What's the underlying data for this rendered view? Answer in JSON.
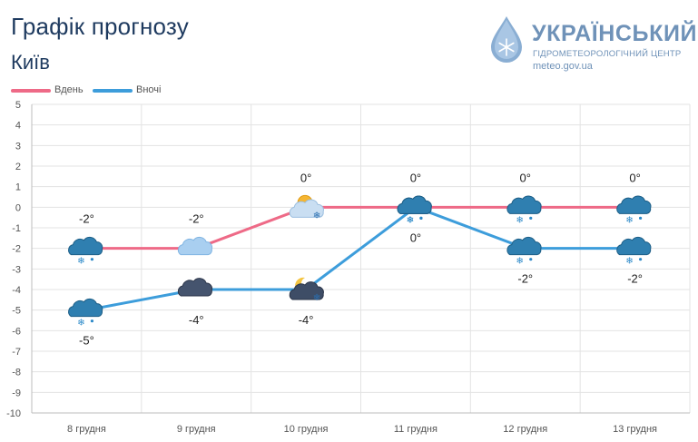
{
  "header": {
    "title": "Графік прогнозу",
    "city": "Київ"
  },
  "brand": {
    "name": "УКРАЇНСЬКИЙ",
    "subtitle": "ГІДРОМЕТЕОРОЛОГІЧНИЙ ЦЕНТР",
    "site": "meteo.gov.ua"
  },
  "colors": {
    "day": "#ee6a87",
    "night": "#3d9ddb",
    "grid": "#e3e3e3",
    "axis_text": "#555555",
    "label_text": "#222222"
  },
  "chart_data": {
    "type": "line",
    "x": [
      "8 грудня",
      "9 грудня",
      "10 грудня",
      "11 грудня",
      "12 грудня",
      "13 грудня"
    ],
    "ylim": [
      -10,
      5
    ],
    "yticks": [
      5,
      4,
      3,
      2,
      1,
      0,
      -1,
      -2,
      -3,
      -4,
      -5,
      -6,
      -7,
      -8,
      -9,
      -10
    ],
    "grid": true,
    "legend_position": "top-left",
    "series": [
      {
        "name": "Вдень",
        "values": [
          -2,
          -2,
          0,
          0,
          0,
          0
        ],
        "labels": [
          "-2°",
          "-2°",
          "0°",
          "0°",
          "0°",
          "0°"
        ],
        "icons": [
          "cloud-snow-icon",
          "cloud-icon",
          "sun-cloud-snow-icon",
          "cloud-snow-icon",
          "cloud-snow-icon",
          "cloud-snow-icon"
        ]
      },
      {
        "name": "Вночі",
        "values": [
          -5,
          -4,
          -4,
          0,
          -2,
          -2
        ],
        "labels": [
          "-5°",
          "-4°",
          "-4°",
          "0°",
          "-2°",
          "-2°"
        ],
        "icons": [
          "cloud-snow-icon",
          "dark-cloud-icon",
          "moon-cloud-snow-icon",
          "cloud-snow-icon",
          "cloud-snow-icon",
          "cloud-snow-icon"
        ]
      }
    ]
  }
}
